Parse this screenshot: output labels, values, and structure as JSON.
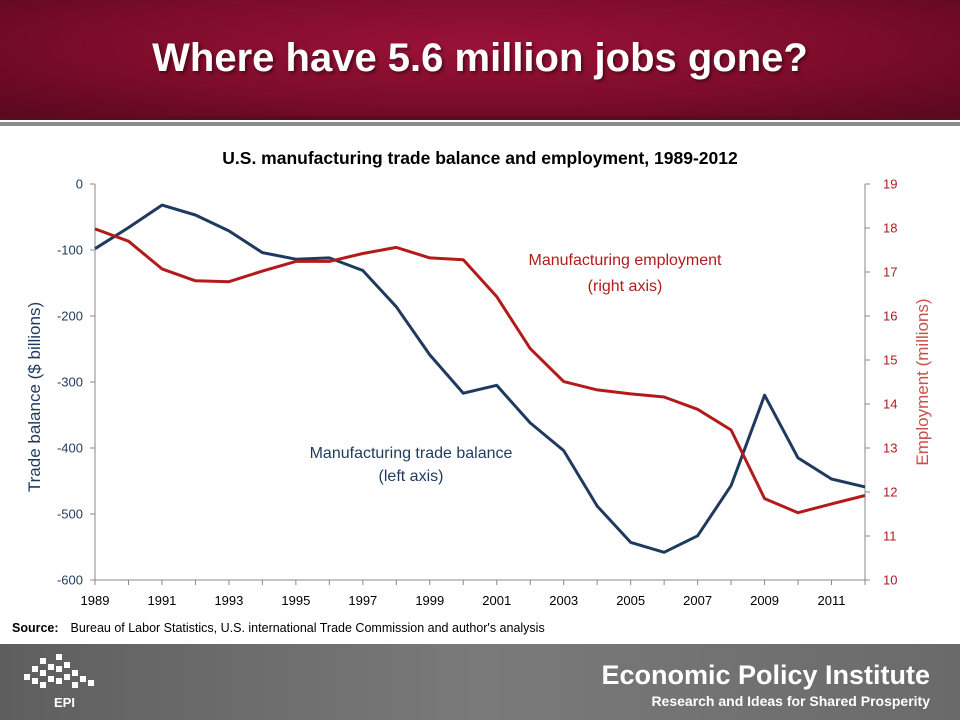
{
  "slide": {
    "title": "Where have 5.6 million jobs gone?"
  },
  "chart_data": {
    "type": "line",
    "title": "U.S. manufacturing trade balance and employment, 1989-2012",
    "x": [
      1989,
      1990,
      1991,
      1992,
      1993,
      1994,
      1995,
      1996,
      1997,
      1998,
      1999,
      2000,
      2001,
      2002,
      2003,
      2004,
      2005,
      2006,
      2007,
      2008,
      2009,
      2010,
      2011,
      2012
    ],
    "xticks": [
      "1989",
      "1991",
      "1993",
      "1995",
      "1997",
      "1999",
      "2001",
      "2003",
      "2005",
      "2007",
      "2009",
      "2011"
    ],
    "left_axis": {
      "label": "Trade balance ($ billions)",
      "ylim": [
        -600,
        0
      ],
      "ticks": [
        "0",
        "-100",
        "-200",
        "-300",
        "-400",
        "-500",
        "-600"
      ]
    },
    "right_axis": {
      "label": "Employment (millions)",
      "ylim": [
        10,
        19
      ],
      "ticks": [
        "19",
        "18",
        "17",
        "16",
        "15",
        "14",
        "13",
        "12",
        "11",
        "10"
      ]
    },
    "series": [
      {
        "name": "Manufacturing trade balance",
        "axis": "left",
        "color": "#1f3a5f",
        "annotation": [
          "Manufacturing trade balance",
          "(left axis)"
        ],
        "values": [
          -98,
          -66,
          -32,
          -47,
          -71,
          -104,
          -114,
          -112,
          -131,
          -186,
          -259,
          -317,
          -305,
          -362,
          -404,
          -488,
          -543,
          -558,
          -533,
          -457,
          -320,
          -415,
          -447,
          -459
        ]
      },
      {
        "name": "Manufacturing employment",
        "axis": "right",
        "color": "#b31b1b",
        "annotation": [
          "Manufacturing employment",
          "(right axis)"
        ],
        "values": [
          17.98,
          17.7,
          17.07,
          16.8,
          16.78,
          17.02,
          17.24,
          17.24,
          17.42,
          17.56,
          17.32,
          17.28,
          16.44,
          15.26,
          14.51,
          14.32,
          14.23,
          14.16,
          13.88,
          13.41,
          11.85,
          11.53,
          11.73,
          11.92
        ]
      }
    ],
    "grid": false,
    "legend": "none"
  },
  "source": {
    "label": "Source:",
    "text": "Bureau of Labor Statistics, U.S. international Trade Commission and author's analysis"
  },
  "footer": {
    "org_name": "Economic Policy Institute",
    "tagline": "Research and Ideas for Shared Prosperity",
    "logo_text": "EPI"
  }
}
